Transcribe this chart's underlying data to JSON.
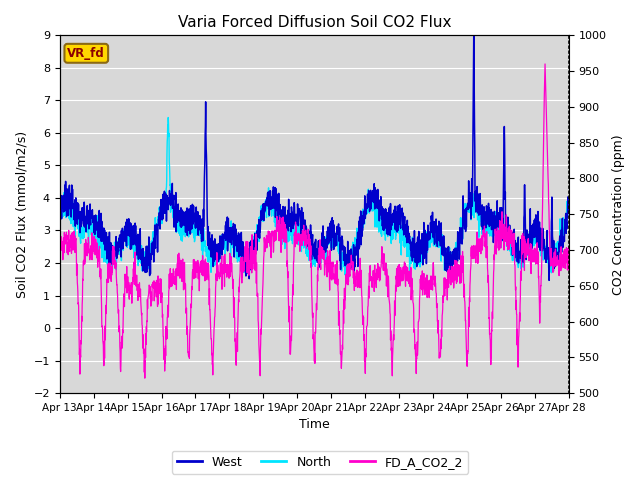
{
  "title": "Varia Forced Diffusion Soil CO2 Flux",
  "xlabel": "Time",
  "ylabel_left": "Soil CO2 Flux (mmol/m2/s)",
  "ylabel_right": "CO2 Concentration (ppm)",
  "ylim_left": [
    -2.0,
    9.0
  ],
  "ylim_right": [
    500,
    1000
  ],
  "yticks_left": [
    -2.0,
    -1.0,
    0.0,
    1.0,
    2.0,
    3.0,
    4.0,
    5.0,
    6.0,
    7.0,
    8.0,
    9.0
  ],
  "yticks_right": [
    500,
    550,
    600,
    650,
    700,
    750,
    800,
    850,
    900,
    950,
    1000
  ],
  "xtick_labels": [
    "Apr 13",
    "Apr 14",
    "Apr 15",
    "Apr 16",
    "Apr 17",
    "Apr 18",
    "Apr 19",
    "Apr 20",
    "Apr 21",
    "Apr 22",
    "Apr 23",
    "Apr 24",
    "Apr 25",
    "Apr 26",
    "Apr 27",
    "Apr 28"
  ],
  "color_west": "#0000CC",
  "color_north": "#00E5FF",
  "color_co2": "#FF00CC",
  "legend_label_west": "West",
  "legend_label_north": "North",
  "legend_label_co2": "FD_A_CO2_2",
  "vr_fd_label": "VR_fd",
  "vr_fd_bg": "#FFD700",
  "vr_fd_border": "#8B6914",
  "grid_color": "#FFFFFF",
  "bg_color": "#D8D8D8",
  "figsize": [
    6.4,
    4.8
  ],
  "dpi": 100,
  "n_points": 2000,
  "days": 15,
  "seed": 7
}
